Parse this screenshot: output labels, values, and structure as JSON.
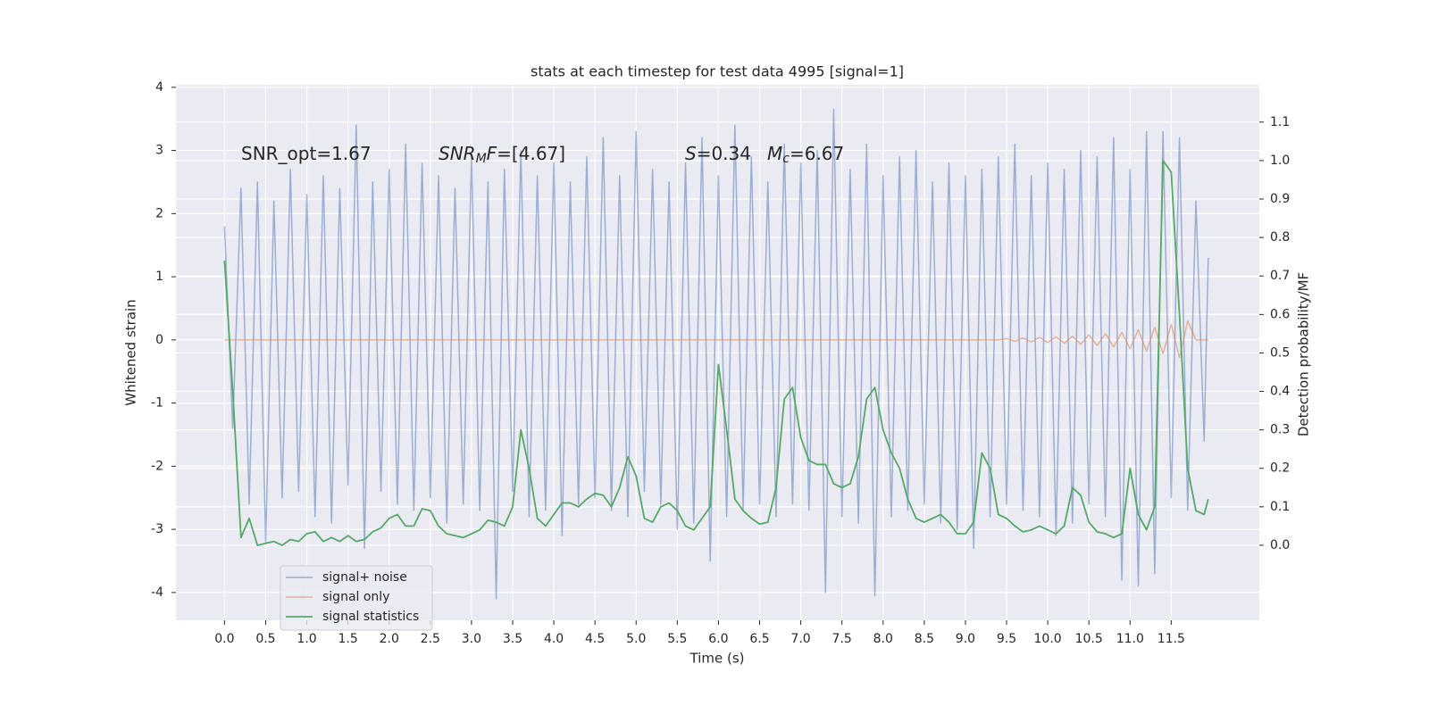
{
  "chart_data": {
    "type": "line",
    "title": "stats at each timestep for test data 4995 [signal=1]",
    "xlabel": "Time (s)",
    "ylabel": "Whitened strain",
    "y2label": "Detection probability/MF",
    "annotations": [
      [
        "SNR_opt=1.67"
      ],
      [
        "SNR",
        "M",
        "F",
        "=[4.67]"
      ],
      [
        "S",
        "=0.34"
      ],
      [
        "M",
        "c",
        "=6.67"
      ]
    ],
    "xlim": [
      -0.59,
      12.57
    ],
    "ylim": [
      -4.44,
      4.04
    ],
    "y2lim": [
      -0.195,
      1.197
    ],
    "xticks": [
      {
        "value": 0,
        "label": "0.0"
      },
      0.5,
      {
        "value": 1,
        "label": "1.0"
      },
      1.5,
      {
        "value": 2,
        "label": "2.0"
      },
      2.5,
      {
        "value": 3,
        "label": "3.0"
      },
      3.5,
      {
        "value": 4,
        "label": "4.0"
      },
      4.5,
      {
        "value": 5,
        "label": "5.0"
      },
      5.5,
      {
        "value": 6,
        "label": "6.0"
      },
      6.5,
      {
        "value": 7,
        "label": "7.0"
      },
      7.5,
      {
        "value": 8,
        "label": "8.0"
      },
      8.5,
      {
        "value": 9,
        "label": "9.0"
      },
      9.5,
      {
        "value": 10,
        "label": "10.0"
      },
      10.5,
      {
        "value": 11,
        "label": "11.0"
      },
      11.5
    ],
    "yticks": [
      -4,
      -3,
      -2,
      -1,
      0,
      1,
      2,
      3,
      4
    ],
    "y2ticks": [
      {
        "value": 0,
        "label": "0.0"
      },
      0.1,
      0.2,
      0.3,
      0.4,
      0.5,
      0.6,
      0.7,
      0.8,
      0.9,
      {
        "value": 1,
        "label": "1.0"
      },
      1.1
    ],
    "grid": true,
    "legend": "lower left",
    "x": [
      0.0,
      0.1,
      0.2,
      0.3,
      0.4,
      0.5,
      0.6,
      0.7,
      0.8,
      0.9,
      1.0,
      1.1,
      1.2,
      1.3,
      1.4,
      1.5,
      1.6,
      1.7,
      1.8,
      1.9,
      2.0,
      2.1,
      2.2,
      2.3,
      2.4,
      2.5,
      2.6,
      2.7,
      2.8,
      2.9,
      3.0,
      3.1,
      3.2,
      3.3,
      3.4,
      3.5,
      3.6,
      3.7,
      3.8,
      3.9,
      4.0,
      4.1,
      4.2,
      4.3,
      4.4,
      4.5,
      4.6,
      4.7,
      4.8,
      4.9,
      5.0,
      5.1,
      5.2,
      5.3,
      5.4,
      5.5,
      5.6,
      5.7,
      5.8,
      5.9,
      6.0,
      6.1,
      6.2,
      6.3,
      6.4,
      6.5,
      6.6,
      6.7,
      6.8,
      6.9,
      7.0,
      7.1,
      7.2,
      7.3,
      7.4,
      7.5,
      7.6,
      7.7,
      7.8,
      7.9,
      8.0,
      8.1,
      8.2,
      8.3,
      8.4,
      8.5,
      8.6,
      8.7,
      8.8,
      8.9,
      9.0,
      9.1,
      9.2,
      9.3,
      9.4,
      9.5,
      9.6,
      9.7,
      9.8,
      9.9,
      10.0,
      10.1,
      10.2,
      10.3,
      10.4,
      10.5,
      10.6,
      10.7,
      10.8,
      10.9,
      11.0,
      11.1,
      11.2,
      11.3,
      11.4,
      11.5,
      11.6,
      11.7,
      11.8,
      11.9,
      11.95
    ],
    "series": [
      {
        "name": "signal+ noise",
        "color": "#4c72b0",
        "values": [
          1.8,
          -1.4,
          2.4,
          -2.6,
          2.5,
          -3.2,
          2.2,
          -2.5,
          2.7,
          -2.4,
          2.3,
          -2.8,
          2.6,
          -2.9,
          2.4,
          -2.3,
          3.4,
          -3.3,
          2.5,
          -2.4,
          2.7,
          -2.6,
          3.1,
          -2.7,
          2.8,
          -2.5,
          2.6,
          -2.9,
          2.4,
          -2.6,
          2.9,
          -2.7,
          2.5,
          -4.1,
          2.7,
          -2.4,
          3.0,
          -2.8,
          2.6,
          -2.7,
          2.8,
          -3.1,
          2.5,
          -2.6,
          2.9,
          -2.5,
          3.2,
          -2.7,
          2.6,
          -2.8,
          3.3,
          -2.4,
          2.7,
          -2.6,
          2.5,
          -3.0,
          2.8,
          -2.9,
          3.2,
          -3.5,
          2.6,
          -2.8,
          3.4,
          -2.7,
          2.9,
          -2.6,
          2.5,
          -2.8,
          3.1,
          -2.6,
          2.8,
          -2.7,
          3.0,
          -4.0,
          3.65,
          -2.8,
          2.7,
          -2.9,
          3.1,
          -4.05,
          2.6,
          -2.8,
          2.9,
          -2.7,
          3.0,
          -2.6,
          2.5,
          -2.9,
          2.8,
          -3.0,
          2.6,
          -3.3,
          2.7,
          -2.8,
          2.9,
          -2.6,
          3.1,
          -2.7,
          2.6,
          -2.8,
          2.8,
          -3.1,
          2.7,
          -2.9,
          3.0,
          -2.6,
          2.9,
          -2.8,
          3.2,
          -3.8,
          2.7,
          -3.9,
          3.3,
          -3.7,
          3.3,
          -2.5,
          3.2,
          -2.7,
          2.2,
          -1.6,
          1.3
        ]
      },
      {
        "name": "signal only",
        "color": "#dd8452",
        "values": [
          0,
          0,
          0,
          0,
          0,
          0,
          0,
          0,
          0,
          0,
          0,
          0,
          0,
          0,
          0,
          0,
          0,
          0,
          0,
          0,
          0,
          0,
          0,
          0,
          0,
          0,
          0,
          0,
          0,
          0,
          0,
          0,
          0,
          0,
          0,
          0,
          0,
          0,
          0,
          0,
          0,
          0,
          0,
          0,
          0,
          0,
          0,
          0,
          0,
          0,
          0,
          0,
          0,
          0,
          0,
          0,
          0,
          0,
          0,
          0,
          0,
          0,
          0,
          0,
          0,
          0,
          0,
          0,
          0,
          0,
          0,
          0,
          0,
          0,
          0,
          0,
          0,
          0,
          0,
          0,
          0,
          0,
          0,
          0,
          0,
          0,
          0,
          0,
          0,
          0,
          0,
          0,
          0,
          0,
          0,
          0.02,
          -0.02,
          0.03,
          -0.03,
          0.04,
          -0.04,
          0.05,
          -0.05,
          0.06,
          -0.07,
          0.08,
          -0.09,
          0.1,
          -0.11,
          0.12,
          -0.14,
          0.16,
          -0.18,
          0.2,
          -0.22,
          0.25,
          -0.28,
          0.3,
          0,
          0,
          0
        ]
      },
      {
        "name": "signal statistics",
        "color": "#55a868",
        "axis": "y2",
        "values": [
          0.74,
          0.4,
          0.02,
          0.07,
          0.0,
          0.005,
          0.01,
          0.0,
          0.015,
          0.01,
          0.03,
          0.035,
          0.01,
          0.02,
          0.01,
          0.025,
          0.01,
          0.015,
          0.035,
          0.045,
          0.07,
          0.08,
          0.05,
          0.05,
          0.095,
          0.09,
          0.05,
          0.03,
          0.025,
          0.02,
          0.03,
          0.04,
          0.065,
          0.06,
          0.05,
          0.1,
          0.3,
          0.2,
          0.07,
          0.05,
          0.08,
          0.11,
          0.11,
          0.1,
          0.12,
          0.135,
          0.13,
          0.1,
          0.15,
          0.23,
          0.18,
          0.07,
          0.06,
          0.1,
          0.11,
          0.09,
          0.05,
          0.04,
          0.07,
          0.1,
          0.47,
          0.3,
          0.12,
          0.09,
          0.07,
          0.055,
          0.06,
          0.15,
          0.38,
          0.41,
          0.28,
          0.22,
          0.21,
          0.21,
          0.16,
          0.15,
          0.16,
          0.23,
          0.38,
          0.41,
          0.3,
          0.24,
          0.2,
          0.12,
          0.07,
          0.06,
          0.07,
          0.08,
          0.06,
          0.03,
          0.03,
          0.06,
          0.24,
          0.2,
          0.08,
          0.07,
          0.05,
          0.035,
          0.04,
          0.05,
          0.04,
          0.03,
          0.05,
          0.15,
          0.13,
          0.06,
          0.035,
          0.03,
          0.02,
          0.03,
          0.2,
          0.08,
          0.04,
          0.1,
          1.0,
          0.97,
          0.6,
          0.2,
          0.09,
          0.08,
          0.12
        ]
      }
    ]
  }
}
